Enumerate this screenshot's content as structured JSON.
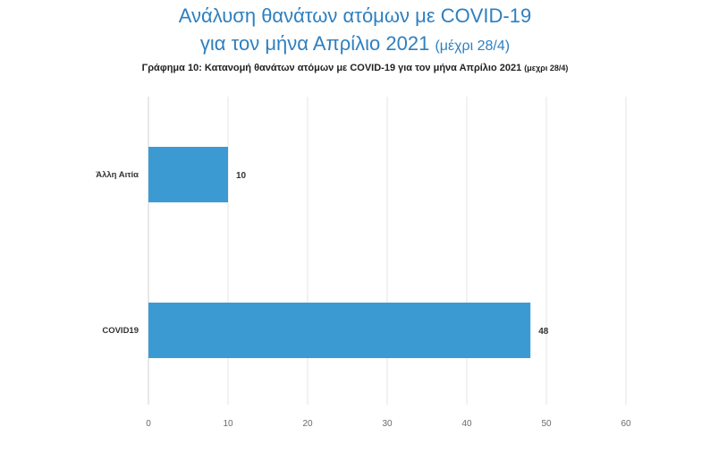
{
  "header": {
    "title_line1": "Ανάλυση θανάτων ατόμων με COVID-19",
    "title_line2_main": "για τον μήνα Απρίλιο 2021",
    "title_line2_note": "(μέχρι 28/4)",
    "subtitle_main": "Γράφημα 10: Κατανομή θανάτων ατόμων με COVID-19 για τον μήνα Απρίλιο 2021",
    "subtitle_note": "(μεχρι 28/4)"
  },
  "colors": {
    "title": "#2E7FBF",
    "bar": "#3C9AD3",
    "grid": "#e6e6e6"
  },
  "chart_data": {
    "type": "bar",
    "orientation": "horizontal",
    "categories": [
      "Άλλη Αιτία",
      "COVID19"
    ],
    "values": [
      10,
      48
    ],
    "data_labels": [
      "10",
      "48"
    ],
    "xlim": [
      0,
      60
    ],
    "xticks": [
      "0",
      "10",
      "20",
      "30",
      "40",
      "50",
      "60"
    ],
    "grid": true,
    "legend": "none"
  }
}
